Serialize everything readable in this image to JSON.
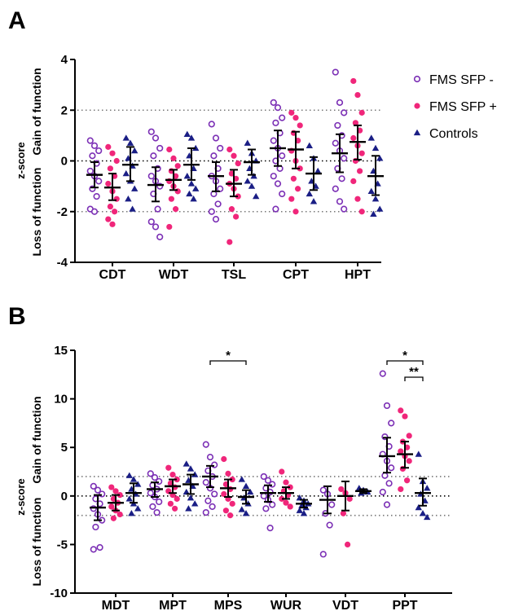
{
  "colors": {
    "fms_minus": "#7B2FB5",
    "fms_plus": "#F0267A",
    "controls": "#1A1E85",
    "mean_bar": "#000000",
    "ref_line": "#777777"
  },
  "legend": {
    "placement": "right",
    "items": [
      {
        "label": "FMS SFP -",
        "marker": "open-circle",
        "color_key": "fms_minus"
      },
      {
        "label": "FMS SFP +",
        "marker": "filled-circle",
        "color_key": "fms_plus"
      },
      {
        "label": "Controls",
        "marker": "filled-triangle",
        "color_key": "controls"
      }
    ]
  },
  "chart_data": [
    {
      "panel": "A",
      "type": "scatter",
      "ylabel": "z-score",
      "y_annotations": {
        "upper": "Gain of function",
        "lower": "Loss of function"
      },
      "ylim": [
        -4,
        4
      ],
      "yticks": [
        -4,
        -2,
        0,
        2,
        4
      ],
      "ref_lines": [
        2,
        0,
        -2
      ],
      "categories": [
        "CDT",
        "WDT",
        "TSL",
        "CPT",
        "HPT"
      ],
      "significance": [],
      "series": [
        {
          "name": "FMS SFP -",
          "data": [
            {
              "points": [
                0.8,
                0.6,
                0.4,
                0.2,
                -0.1,
                -0.4,
                -0.6,
                -0.8,
                -1.1,
                -1.4,
                -1.9,
                -2.0
              ],
              "mean": -0.55,
              "ci": [
                -1.05,
                -0.05
              ]
            },
            {
              "points": [
                1.15,
                0.9,
                0.5,
                0.2,
                -0.3,
                -0.6,
                -0.8,
                -1.0,
                -1.3,
                -1.9,
                -2.4,
                -2.6,
                -3.0
              ],
              "mean": -0.95,
              "ci": [
                -1.6,
                -0.25
              ]
            },
            {
              "points": [
                1.45,
                0.9,
                0.5,
                0.2,
                -0.3,
                -0.6,
                -0.8,
                -1.1,
                -1.3,
                -1.7,
                -2.0,
                -2.3
              ],
              "mean": -0.6,
              "ci": [
                -1.2,
                -0.05
              ]
            },
            {
              "points": [
                2.3,
                2.1,
                1.7,
                1.5,
                1.1,
                0.8,
                0.5,
                0.2,
                0.0,
                -0.3,
                -0.6,
                -0.9,
                -1.3,
                -1.9
              ],
              "mean": 0.5,
              "ci": [
                -0.2,
                1.2
              ]
            },
            {
              "points": [
                3.5,
                2.3,
                1.9,
                1.4,
                1.0,
                0.7,
                0.4,
                0.1,
                -0.3,
                -0.7,
                -1.1,
                -1.6,
                -1.9
              ],
              "mean": 0.3,
              "ci": [
                -0.45,
                1.05
              ]
            }
          ]
        },
        {
          "name": "FMS SFP +",
          "data": [
            {
              "points": [
                0.55,
                0.3,
                0.0,
                -0.3,
                -0.6,
                -0.9,
                -1.2,
                -1.5,
                -1.8,
                -2.0,
                -2.3,
                -2.5
              ],
              "mean": -1.05,
              "ci": [
                -1.55,
                -0.5
              ]
            },
            {
              "points": [
                0.45,
                0.1,
                -0.2,
                -0.4,
                -0.6,
                -0.8,
                -1.0,
                -1.2,
                -1.5,
                -1.9,
                -2.6
              ],
              "mean": -0.75,
              "ci": [
                -1.15,
                -0.35
              ]
            },
            {
              "points": [
                0.45,
                0.2,
                -0.1,
                -0.5,
                -0.7,
                -0.9,
                -1.1,
                -1.4,
                -1.9,
                -2.2,
                -3.2
              ],
              "mean": -0.9,
              "ci": [
                -1.4,
                -0.35
              ]
            },
            {
              "points": [
                1.9,
                1.7,
                1.4,
                1.1,
                0.8,
                0.4,
                0.0,
                -0.3,
                -0.7,
                -1.1,
                -1.5,
                -2.0
              ],
              "mean": 0.45,
              "ci": [
                -0.3,
                1.15
              ]
            },
            {
              "points": [
                3.15,
                2.6,
                1.9,
                1.5,
                1.2,
                0.9,
                0.6,
                0.3,
                0.0,
                -0.4,
                -0.8,
                -1.5,
                -2.0
              ],
              "mean": 0.75,
              "ci": [
                0.05,
                1.4
              ]
            }
          ]
        },
        {
          "name": "Controls",
          "data": [
            {
              "points": [
                0.9,
                0.7,
                0.4,
                0.1,
                -0.2,
                -0.5,
                -0.8,
                -1.1,
                -1.5,
                -1.9
              ],
              "mean": -0.15,
              "ci": [
                -0.8,
                0.55
              ]
            },
            {
              "points": [
                1.05,
                0.9,
                0.5,
                0.2,
                -0.3,
                -0.6,
                -0.9,
                -1.1,
                -1.3,
                -1.5
              ],
              "mean": -0.15,
              "ci": [
                -0.75,
                0.5
              ]
            },
            {
              "points": [
                0.7,
                0.3,
                0.0,
                -0.3,
                -0.6,
                -0.8,
                -1.0,
                -1.4
              ],
              "mean": -0.05,
              "ci": [
                -0.55,
                0.45
              ]
            },
            {
              "points": [
                0.6,
                0.1,
                -0.4,
                -0.8,
                -1.0,
                -1.3,
                -1.6
              ],
              "mean": -0.5,
              "ci": [
                -1.15,
                0.15
              ]
            },
            {
              "points": [
                0.9,
                0.5,
                0.1,
                -0.4,
                -0.9,
                -1.2,
                -1.5,
                -1.9,
                -2.1
              ],
              "mean": -0.6,
              "ci": [
                -1.35,
                0.2
              ]
            }
          ]
        }
      ]
    },
    {
      "panel": "B",
      "type": "scatter",
      "ylabel": "z-score",
      "y_annotations": {
        "upper": "Gain of function",
        "lower": "Loss of function"
      },
      "ylim": [
        -10,
        15
      ],
      "yticks": [
        -10,
        -5,
        0,
        5,
        10,
        15
      ],
      "ref_lines": [
        2,
        0,
        -2
      ],
      "categories": [
        "MDT",
        "MPT",
        "MPS",
        "WUR",
        "VDT",
        "PPT"
      ],
      "significance": [
        {
          "category": "MPS",
          "from": "FMS SFP -",
          "to": "Controls",
          "label": "*"
        },
        {
          "category": "PPT",
          "from": "FMS SFP -",
          "to": "Controls",
          "label": "*"
        },
        {
          "category": "PPT",
          "from": "FMS SFP +",
          "to": "Controls",
          "label": "**"
        }
      ],
      "series": [
        {
          "name": "FMS SFP -",
          "data": [
            {
              "points": [
                1.0,
                0.6,
                0.2,
                -0.3,
                -0.8,
                -1.3,
                -1.9,
                -2.5,
                -3.2,
                -5.3,
                -5.5
              ],
              "mean": -1.2,
              "ci": [
                -2.5,
                0.1
              ]
            },
            {
              "points": [
                2.3,
                1.9,
                1.5,
                1.1,
                0.7,
                0.3,
                -0.1,
                -0.6,
                -1.1,
                -1.7
              ],
              "mean": 0.7,
              "ci": [
                -0.1,
                1.4
              ]
            },
            {
              "points": [
                5.3,
                4.0,
                3.2,
                2.6,
                2.0,
                1.4,
                0.8,
                0.2,
                -0.5,
                -1.1,
                -1.7
              ],
              "mean": 2.0,
              "ci": [
                0.9,
                3.1
              ]
            },
            {
              "points": [
                2.0,
                1.6,
                1.2,
                0.8,
                0.4,
                0.0,
                -0.4,
                -0.9,
                -1.3,
                -3.3
              ],
              "mean": 0.3,
              "ci": [
                -0.6,
                1.1
              ]
            },
            {
              "points": [
                0.6,
                0.2,
                -0.9,
                -1.8,
                -3.0,
                -6.0
              ],
              "mean": -0.4,
              "ci": [
                -1.8,
                1.0
              ]
            },
            {
              "points": [
                12.6,
                9.3,
                7.5,
                6.1,
                5.1,
                4.3,
                3.6,
                2.9,
                2.1,
                1.3,
                0.4,
                -0.9
              ],
              "mean": 4.1,
              "ci": [
                2.4,
                6.0
              ]
            }
          ]
        },
        {
          "name": "FMS SFP +",
          "data": [
            {
              "points": [
                0.9,
                0.5,
                0.1,
                -0.3,
                -0.7,
                -1.1,
                -1.5,
                -1.9,
                -2.3
              ],
              "mean": -0.7,
              "ci": [
                -1.5,
                0.1
              ]
            },
            {
              "points": [
                2.9,
                2.2,
                1.7,
                1.3,
                0.9,
                0.5,
                0.1,
                -0.3,
                -0.8,
                -1.3
              ],
              "mean": 1.0,
              "ci": [
                0.3,
                1.7
              ]
            },
            {
              "points": [
                3.8,
                2.3,
                1.7,
                1.2,
                0.7,
                0.2,
                -0.3,
                -0.8,
                -1.5,
                -2.0
              ],
              "mean": 0.8,
              "ci": [
                -0.1,
                1.7
              ]
            },
            {
              "points": [
                2.5,
                1.4,
                0.9,
                0.5,
                0.1,
                -0.3,
                -0.7,
                -1.1
              ],
              "mean": 0.3,
              "ci": [
                -0.3,
                0.9
              ]
            },
            {
              "points": [
                0.7,
                0.3,
                -0.3,
                -1.8,
                -5.0
              ],
              "mean": 0.0,
              "ci": [
                -1.5,
                1.5
              ]
            },
            {
              "points": [
                8.8,
                8.2,
                6.2,
                5.6,
                5.0,
                4.6,
                4.1,
                3.6,
                2.8,
                1.6,
                0.7
              ],
              "mean": 4.3,
              "ci": [
                2.9,
                5.6
              ]
            }
          ]
        },
        {
          "name": "Controls",
          "data": [
            {
              "points": [
                2.1,
                1.7,
                1.2,
                0.7,
                0.2,
                -0.3,
                -0.8,
                -1.3,
                -1.8
              ],
              "mean": 0.3,
              "ci": [
                -0.7,
                1.3
              ]
            },
            {
              "points": [
                3.3,
                2.8,
                2.2,
                1.6,
                1.0,
                0.4,
                -0.2,
                -0.8,
                -1.3
              ],
              "mean": 1.2,
              "ci": [
                0.2,
                2.2
              ]
            },
            {
              "points": [
                1.7,
                1.0,
                0.4,
                -0.2,
                -0.8,
                -1.4,
                -1.8
              ],
              "mean": -0.1,
              "ci": [
                -0.8,
                0.6
              ]
            },
            {
              "points": [
                -0.2,
                -0.5,
                -0.8,
                -1.0,
                -1.2,
                -1.5,
                -1.8
              ],
              "mean": -0.8,
              "ci": [
                -1.2,
                -0.4
              ]
            },
            {
              "points": [
                0.8,
                0.6,
                0.4,
                0.3
              ],
              "mean": 0.5,
              "ci": [
                0.3,
                0.7
              ]
            },
            {
              "points": [
                4.3,
                1.5,
                0.8,
                0.2,
                -0.5,
                -1.2,
                -1.8,
                -2.2
              ],
              "mean": 0.3,
              "ci": [
                -1.0,
                1.8
              ]
            }
          ]
        }
      ]
    }
  ]
}
